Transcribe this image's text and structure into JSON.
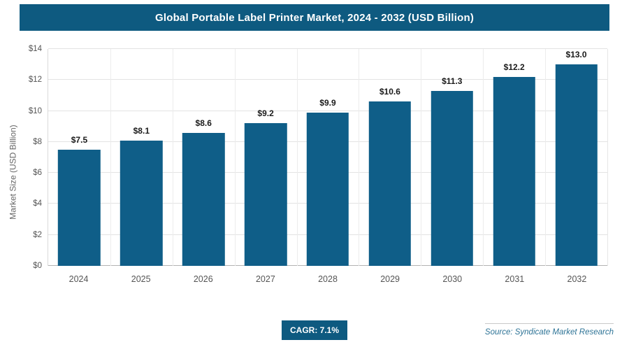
{
  "header": {
    "title": "Global Portable Label Printer Market, 2024 - 2032 (USD Billion)"
  },
  "chart_data": {
    "type": "bar",
    "title": "Global Portable Label Printer Market, 2024 - 2032 (USD Billion)",
    "categories": [
      "2024",
      "2025",
      "2026",
      "2027",
      "2028",
      "2029",
      "2030",
      "2031",
      "2032"
    ],
    "values": [
      7.5,
      8.1,
      8.6,
      9.2,
      9.9,
      10.6,
      11.3,
      12.2,
      13.0
    ],
    "value_labels": [
      "$7.5",
      "$8.1",
      "$8.6",
      "$9.2",
      "$9.9",
      "$10.6",
      "$11.3",
      "$12.2",
      "$13.0"
    ],
    "xlabel": "",
    "ylabel": "Market Size (USD Billion)",
    "ylim": [
      0,
      14
    ],
    "ytick_step": 2,
    "ytick_labels": [
      "$0",
      "$2",
      "$4",
      "$6",
      "$8",
      "$10",
      "$12",
      "$14"
    ],
    "grid": "horizontal-and-vertical",
    "legend": "none",
    "bar_color": "#0f5e88"
  },
  "footer": {
    "cagr_label": "CAGR: 7.1%",
    "source": "Source: Syndicate Market Research"
  },
  "colors": {
    "header_bg": "#0e5a80",
    "bar": "#0f5e88",
    "badge_bg": "#0e5a80",
    "source_text": "#2d7396"
  }
}
